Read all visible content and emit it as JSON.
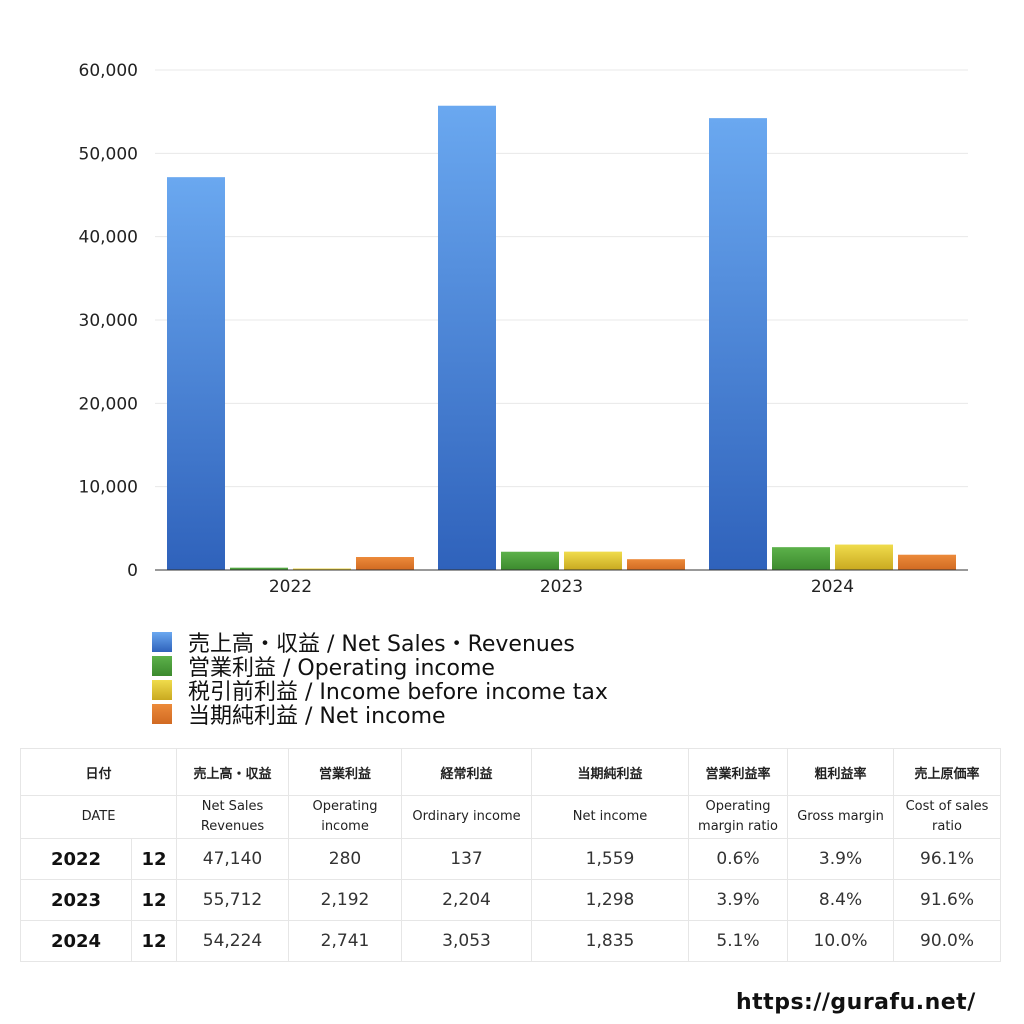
{
  "chart_data": {
    "type": "bar",
    "categories": [
      "2022",
      "2023",
      "2024"
    ],
    "series": [
      {
        "name": "売上高・収益 / Net Sales・Revenues",
        "values": [
          47140,
          55712,
          54224
        ],
        "color": "#3f7fdc"
      },
      {
        "name": "営業利益 / Operating income",
        "values": [
          280,
          2192,
          2741
        ],
        "color": "#4a9a3a"
      },
      {
        "name": "税引前利益 / Income before income tax",
        "values": [
          137,
          2204,
          3053
        ],
        "color": "#d9c12c"
      },
      {
        "name": "当期純利益 / Net income",
        "values": [
          1559,
          1298,
          1835
        ],
        "color": "#df7a2c"
      }
    ],
    "yticks": [
      "60,000",
      "50,000",
      "40,000",
      "30,000",
      "20,000",
      "10,000",
      "0"
    ],
    "ylim": [
      0,
      60000
    ],
    "grid": true,
    "legend_position": "bottom-left"
  },
  "table": {
    "header_jp": [
      "日付",
      "売上高・収益",
      "営業利益",
      "経常利益",
      "当期純利益",
      "営業利益率",
      "粗利益率",
      "売上原価率"
    ],
    "header_en": [
      "DATE",
      "Net Sales Revenues",
      "Operating income",
      "Ordinary income",
      "Net income",
      "Operating margin ratio",
      "Gross margin",
      "Cost of sales ratio"
    ],
    "rows": [
      {
        "year": "2022",
        "month": "12",
        "cells": [
          "47,140",
          "280",
          "137",
          "1,559",
          "0.6%",
          "3.9%",
          "96.1%"
        ]
      },
      {
        "year": "2023",
        "month": "12",
        "cells": [
          "55,712",
          "2,192",
          "2,204",
          "1,298",
          "3.9%",
          "8.4%",
          "91.6%"
        ]
      },
      {
        "year": "2024",
        "month": "12",
        "cells": [
          "54,224",
          "2,741",
          "3,053",
          "1,835",
          "5.1%",
          "10.0%",
          "90.0%"
        ]
      }
    ]
  },
  "footer": {
    "site": "https://gurafu.net/"
  }
}
